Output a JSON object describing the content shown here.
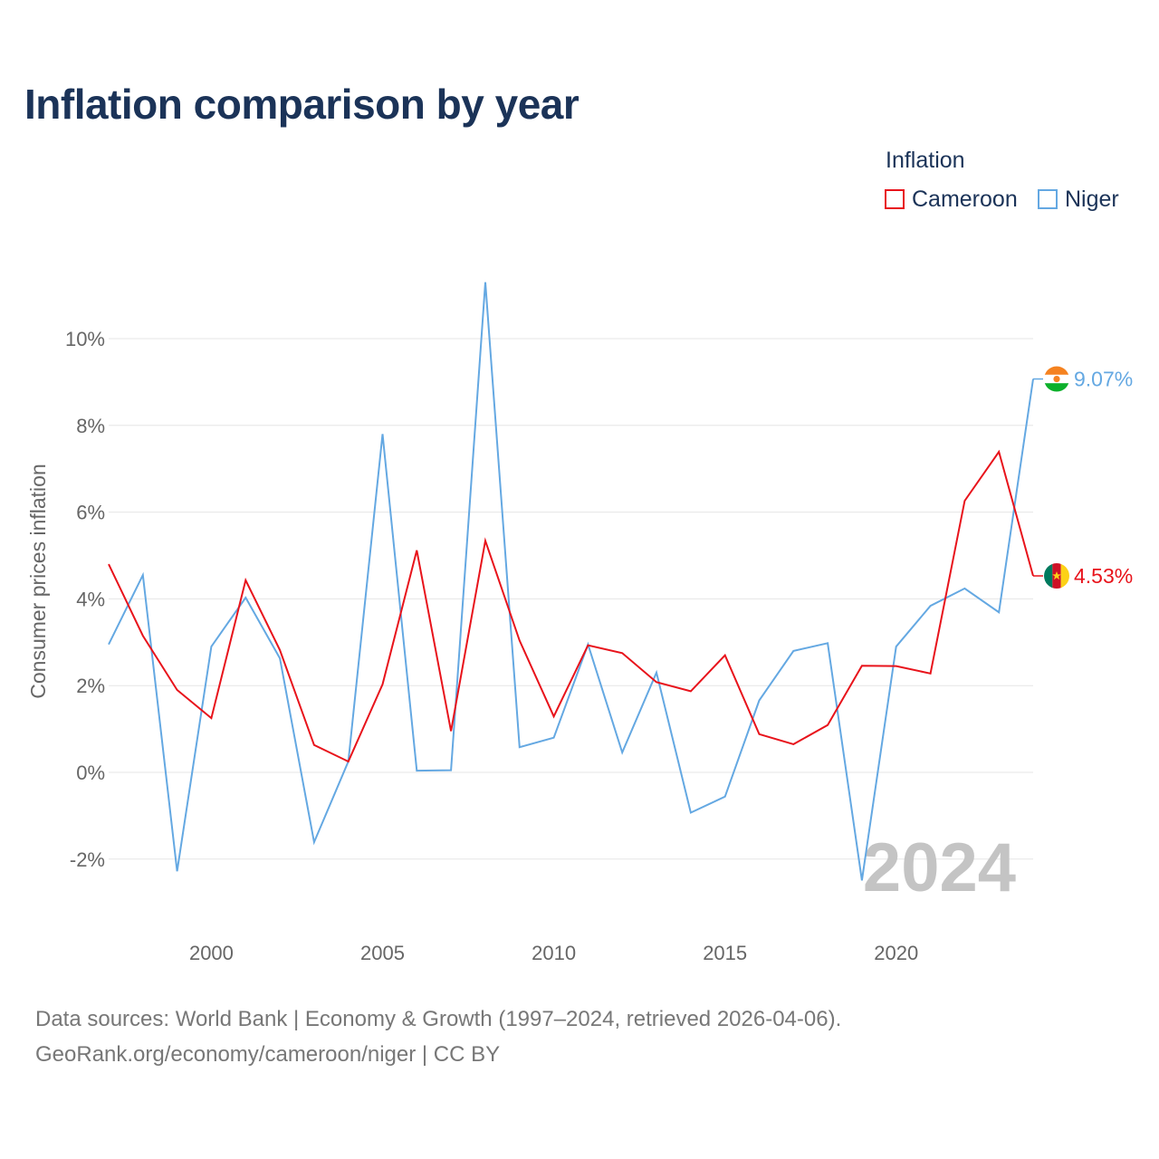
{
  "colors": {
    "title": "#1b3358",
    "cameroon": "#e8131b",
    "niger": "#64a8e2",
    "grid": "#e6e6e6",
    "axis_text": "#666666",
    "watermark": "#c4c4c4"
  },
  "chart_data": {
    "type": "line",
    "title": "Inflation comparison by year",
    "legend_title": "Inflation",
    "legend_position": "top-right",
    "xlabel": "",
    "ylabel": "Consumer prices inflation",
    "xlim": [
      1997,
      2024
    ],
    "ylim": [
      -3,
      11.5
    ],
    "x": [
      1997,
      1998,
      1999,
      2000,
      2001,
      2002,
      2003,
      2004,
      2005,
      2006,
      2007,
      2008,
      2009,
      2010,
      2011,
      2012,
      2013,
      2014,
      2015,
      2016,
      2017,
      2018,
      2019,
      2020,
      2021,
      2022,
      2023,
      2024
    ],
    "x_ticks": [
      2000,
      2005,
      2010,
      2015,
      2020
    ],
    "x_tick_labels": [
      "2000",
      "2005",
      "2010",
      "2015",
      "2020"
    ],
    "y_ticks": [
      -2,
      0,
      2,
      4,
      6,
      8,
      10
    ],
    "y_tick_labels": [
      "-2%",
      "0%",
      "2%",
      "4%",
      "6%",
      "8%",
      "10%"
    ],
    "grid": true,
    "current_year": "2024",
    "series": [
      {
        "name": "Cameroon",
        "color": "#e8131b",
        "values": [
          4.8,
          3.15,
          1.9,
          1.25,
          4.43,
          2.82,
          0.63,
          0.25,
          2.03,
          5.12,
          0.95,
          5.34,
          3.04,
          1.29,
          2.93,
          2.75,
          2.08,
          1.87,
          2.7,
          0.88,
          0.65,
          1.09,
          2.46,
          2.45,
          2.28,
          6.26,
          7.39,
          4.53
        ],
        "end_label": "4.53%",
        "flag_icon": "cameroon-flag-icon"
      },
      {
        "name": "Niger",
        "color": "#64a8e2",
        "values": [
          2.95,
          4.55,
          -2.28,
          2.9,
          4.03,
          2.63,
          -1.61,
          0.25,
          7.8,
          0.04,
          0.05,
          11.3,
          0.58,
          0.8,
          2.95,
          0.46,
          2.3,
          -0.93,
          -0.56,
          1.66,
          2.8,
          2.98,
          -2.49,
          2.9,
          3.84,
          4.24,
          3.69,
          9.07
        ],
        "end_label": "9.07%",
        "flag_icon": "niger-flag-icon"
      }
    ]
  },
  "footer": {
    "sources_line1": "Data sources: World Bank | Economy & Growth (1997–2024, retrieved 2026-04-06).",
    "sources_line2": "GeoRank.org/economy/cameroon/niger | CC BY"
  }
}
